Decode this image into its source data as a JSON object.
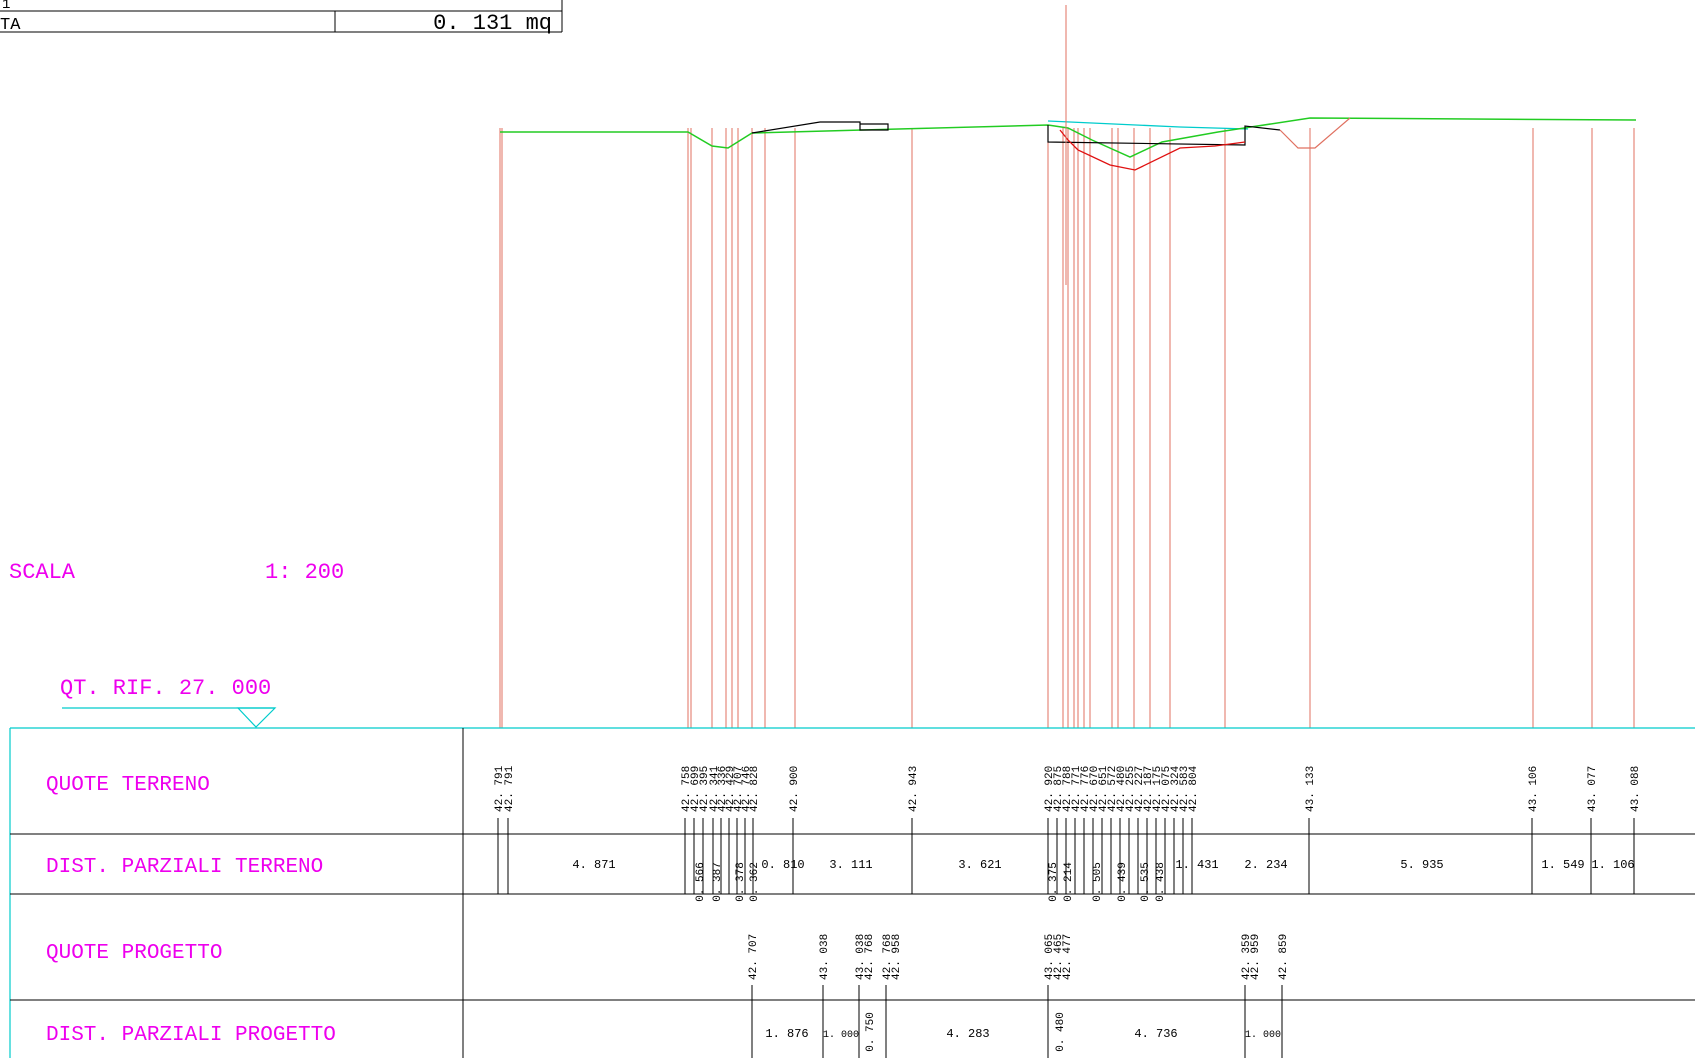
{
  "title_block": {
    "row1_label": "1",
    "row2_label": "TA",
    "row2_value": "0. 131  mq"
  },
  "scale": {
    "label": "SCALA",
    "value": "1: 200"
  },
  "reference": {
    "label": "QT. RIF.  27. 000"
  },
  "rows": {
    "quote_terreno": "QUOTE  TERRENO",
    "dist_parziali_terreno": "DIST. PARZIALI  TERRENO",
    "quote_progetto": "QUOTE  PROGETTO",
    "dist_parziali_progetto": "DIST. PARZIALI  PROGETTO"
  },
  "colors": {
    "terrain_line": "#22cc22",
    "project_line": "#000000",
    "excavation_line": "#e01010",
    "reference_line": "#00cccc",
    "vertical_lines": "#e07060",
    "label_magenta": "#ee00ee",
    "table_border": "#00cccc"
  },
  "terrain_elevations": [
    {
      "label": "42. 791"
    },
    {
      "label": "42. 791"
    },
    {
      "label": "42. 758"
    },
    {
      "label": "42. 699"
    },
    {
      "label": "42. 395"
    },
    {
      "label": "42. 341"
    },
    {
      "label": "42. 336"
    },
    {
      "label": "42. 429"
    },
    {
      "label": "42. 707"
    },
    {
      "label": "42. 746"
    },
    {
      "label": "42. 828"
    },
    {
      "label": "42. 900"
    },
    {
      "label": "42. 943"
    },
    {
      "label": "42. 920"
    },
    {
      "label": "42. 875"
    },
    {
      "label": "42. 788"
    },
    {
      "label": "42. 771"
    },
    {
      "label": "42. 776"
    },
    {
      "label": "42. 670"
    },
    {
      "label": "42. 651"
    },
    {
      "label": "42. 572"
    },
    {
      "label": "42. 480"
    },
    {
      "label": "42. 255"
    },
    {
      "label": "42. 227"
    },
    {
      "label": "42. 187"
    },
    {
      "label": "42. 175"
    },
    {
      "label": "42. 075"
    },
    {
      "label": "42. 324"
    },
    {
      "label": "42. 583"
    },
    {
      "label": "42. 804"
    },
    {
      "label": "43. 133"
    },
    {
      "label": "43. 106"
    },
    {
      "label": "43. 077"
    },
    {
      "label": "43. 088"
    }
  ],
  "terrain_distances": [
    {
      "label": "4. 871"
    },
    {
      "label": "0. 566"
    },
    {
      "label": "0. 387"
    },
    {
      "label": "0. 378"
    },
    {
      "label": "0. 362"
    },
    {
      "label": "0. 810"
    },
    {
      "label": "3. 111"
    },
    {
      "label": "3. 621"
    },
    {
      "label": "0. 375"
    },
    {
      "label": "0. 214"
    },
    {
      "label": "0. 505"
    },
    {
      "label": "0. 439"
    },
    {
      "label": "0. 535"
    },
    {
      "label": "0. 438"
    },
    {
      "label": "1. 431"
    },
    {
      "label": "2. 234"
    },
    {
      "label": "5. 935"
    },
    {
      "label": "1. 549"
    },
    {
      "label": "1. 106"
    }
  ],
  "project_elevations": [
    {
      "label": "42. 707"
    },
    {
      "label": "43. 038"
    },
    {
      "label": "43. 038"
    },
    {
      "label": "42. 768"
    },
    {
      "label": "42. 768"
    },
    {
      "label": "42. 958"
    },
    {
      "label": "43. 065"
    },
    {
      "label": "42. 465"
    },
    {
      "label": "42. 477"
    },
    {
      "label": "42. 359"
    },
    {
      "label": "42. 959"
    },
    {
      "label": "42. 859"
    }
  ],
  "project_distances": [
    {
      "label": "1. 876"
    },
    {
      "label": "1. 000"
    },
    {
      "label": "0. 750"
    },
    {
      "label": "4. 283"
    },
    {
      "label": "0. 480"
    },
    {
      "label": "4. 736"
    },
    {
      "label": "1. 000"
    }
  ]
}
